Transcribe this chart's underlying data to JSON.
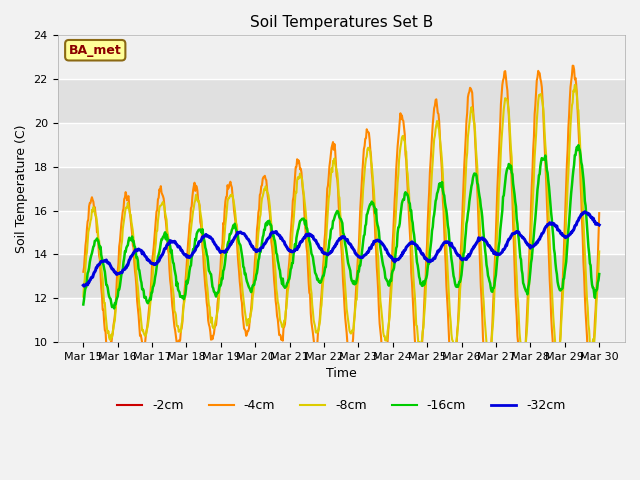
{
  "title": "Soil Temperatures Set B",
  "xlabel": "Time",
  "ylabel": "Soil Temperature (C)",
  "ylim": [
    10,
    24
  ],
  "yticks": [
    10,
    12,
    14,
    16,
    18,
    20,
    22,
    24
  ],
  "annotation_text": "BA_met",
  "legend_entries": [
    "-2cm",
    "-4cm",
    "-8cm",
    "-16cm",
    "-32cm"
  ],
  "line_colors": [
    "#cc0000",
    "#ff8800",
    "#ddcc00",
    "#00cc00",
    "#0000dd"
  ],
  "line_widths": [
    1.2,
    1.5,
    1.5,
    1.8,
    2.2
  ],
  "x_tick_labels": [
    "Mar 15",
    "Mar 16",
    "Mar 17",
    "Mar 18",
    "Mar 19",
    "Mar 20",
    "Mar 21",
    "Mar 22",
    "Mar 23",
    "Mar 24",
    "Mar 25",
    "Mar 26",
    "Mar 27",
    "Mar 28",
    "Mar 29",
    "Mar 30"
  ],
  "num_points": 720,
  "band_colors": [
    "#f0f0f0",
    "#e0e0e0"
  ]
}
